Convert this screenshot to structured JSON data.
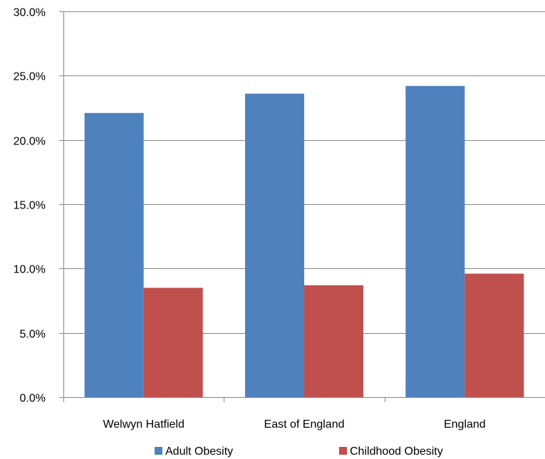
{
  "chart_data": {
    "type": "bar",
    "categories": [
      "Welwyn Hatfield",
      "East of England",
      "England"
    ],
    "series": [
      {
        "name": "Adult Obesity",
        "values": [
          22.1,
          23.6,
          24.2
        ],
        "color": "#4F81BD"
      },
      {
        "name": "Childhood Obesity",
        "values": [
          8.5,
          8.7,
          9.6
        ],
        "color": "#C0504D"
      }
    ],
    "ylim": [
      0,
      30
    ],
    "yticks": [
      0,
      5,
      10,
      15,
      20,
      25,
      30
    ],
    "ytick_labels": [
      "0.0%",
      "5.0%",
      "10.0%",
      "15.0%",
      "20.0%",
      "25.0%",
      "30.0%"
    ],
    "grid": true,
    "legend": "bottom"
  }
}
